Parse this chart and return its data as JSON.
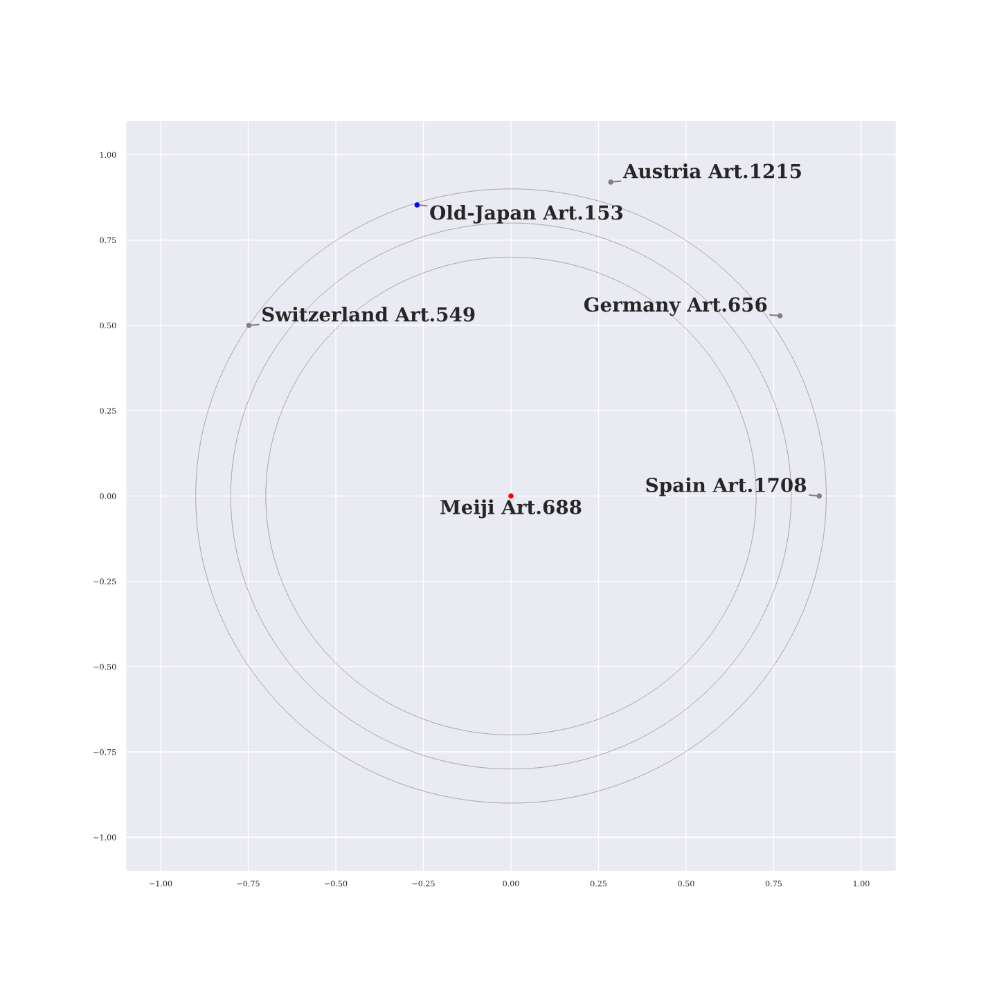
{
  "chart_data": {
    "type": "scatter",
    "xlim": [
      -1.1,
      1.1
    ],
    "ylim": [
      -1.1,
      1.1
    ],
    "xticks": [
      {
        "value": -1,
        "label": "−1.00"
      },
      {
        "value": -0.75,
        "label": "−0.75"
      },
      {
        "value": -0.5,
        "label": "−0.50"
      },
      {
        "value": -0.25,
        "label": "−0.25"
      },
      {
        "value": 0,
        "label": "0.00"
      },
      {
        "value": 0.25,
        "label": "0.25"
      },
      {
        "value": 0.5,
        "label": "0.50"
      },
      {
        "value": 0.75,
        "label": "0.75"
      },
      {
        "value": 1,
        "label": "1.00"
      }
    ],
    "yticks": [
      {
        "value": -1,
        "label": "−1.00"
      },
      {
        "value": -0.75,
        "label": "−0.75"
      },
      {
        "value": -0.5,
        "label": "−0.50"
      },
      {
        "value": -0.25,
        "label": "−0.25"
      },
      {
        "value": 0,
        "label": "0.00"
      },
      {
        "value": 0.25,
        "label": "0.25"
      },
      {
        "value": 0.5,
        "label": "0.50"
      },
      {
        "value": 0.75,
        "label": "0.75"
      },
      {
        "value": 1,
        "label": "1.00"
      }
    ],
    "grid": true,
    "marker": "circle",
    "series": [
      {
        "x": [
          0.285,
          -0.268,
          -0.748,
          0.768,
          0.88,
          0
        ],
        "values": [
          0.92,
          0.853,
          0.5,
          0.528,
          0,
          0
        ],
        "colors": [
          "#808080",
          "#0000ff",
          "#808080",
          "#808080",
          "#808080",
          "#ff0000"
        ]
      }
    ],
    "annotations": [
      {
        "text": "Austria Art.1215",
        "x": 0.285,
        "y": 0.92
      },
      {
        "text": "Old-Japan Art.153",
        "x": -0.268,
        "y": 0.853
      },
      {
        "text": "Switzerland Art.549",
        "x": -0.748,
        "y": 0.5
      },
      {
        "text": "Germany Art.656",
        "x": 0.768,
        "y": 0.528
      },
      {
        "text": "Spain Art.1708",
        "x": 0.88,
        "y": 0
      },
      {
        "text": "Meiji Art.688",
        "x": 0,
        "y": 0
      }
    ]
  }
}
